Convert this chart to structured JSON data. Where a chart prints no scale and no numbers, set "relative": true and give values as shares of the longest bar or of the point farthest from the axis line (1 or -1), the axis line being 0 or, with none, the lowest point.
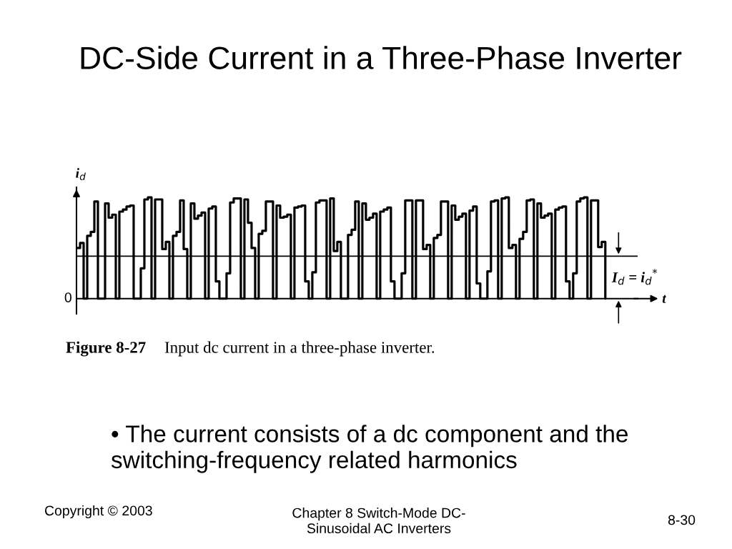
{
  "chart_data": {
    "type": "step",
    "title": "DC-Side Current in a Three-Phase Inverter",
    "xlabel": "t",
    "ylabel": "i$_{d}$",
    "relative": true,
    "line_style": "solid",
    "categories": [
      null,
      null,
      null,
      null,
      null,
      null,
      null,
      null,
      null,
      null,
      null,
      null,
      null,
      null,
      null,
      null,
      null,
      null,
      null,
      null,
      null,
      null,
      null,
      null,
      null,
      null,
      null,
      null,
      null,
      null,
      null,
      null,
      null,
      null,
      null,
      null,
      null,
      null,
      null,
      null,
      null,
      null,
      null,
      null,
      null,
      null,
      null,
      null,
      null,
      null,
      null,
      null,
      null,
      null,
      null,
      null,
      null,
      null,
      null,
      null,
      null,
      null,
      null,
      null,
      null,
      null,
      null,
      null,
      null,
      null,
      null,
      null,
      null,
      null,
      null,
      null,
      null,
      null,
      null,
      null,
      null,
      null,
      null,
      null,
      null,
      null,
      null,
      null,
      null,
      null,
      null,
      null,
      null,
      null,
      null,
      null,
      null,
      null,
      null,
      null,
      null,
      null,
      null,
      null,
      null,
      null,
      null,
      null,
      null,
      null,
      null,
      null,
      null,
      null,
      null,
      null,
      null,
      null,
      null,
      null,
      null,
      null,
      null,
      null,
      null,
      null,
      null,
      null,
      null,
      null,
      null,
      null,
      null,
      null,
      null,
      null,
      null,
      null,
      null,
      null,
      null,
      null,
      null,
      null,
      null,
      null,
      null,
      null,
      null
    ],
    "series": [
      {
        "color": "#000000",
        "values": [
          0.5,
          0.55,
          0,
          0.62,
          0.66,
          0.96,
          0,
          0,
          0.94,
          0.8,
          0.83,
          0,
          0.86,
          0.88,
          0.91,
          0.92,
          0,
          0,
          0.3,
          0.98,
          1.0,
          0,
          0.98,
          0.98,
          0.49,
          0.56,
          0,
          0.62,
          0.66,
          0.97,
          0.49,
          0,
          0.94,
          0.79,
          0.82,
          0.85,
          0,
          0.89,
          0.91,
          0.17,
          0,
          0,
          0.25,
          0.95,
          0.99,
          0.99,
          0,
          0.98,
          0.75,
          0.5,
          0,
          0.64,
          0.67,
          0.96,
          0.96,
          0,
          0.92,
          0.8,
          0.81,
          0.83,
          0,
          0.9,
          0.91,
          0.92,
          0.17,
          0,
          0.26,
          0.95,
          0.97,
          0.97,
          0,
          0.99,
          0.47,
          0.56,
          0,
          0,
          0.63,
          0.68,
          0.96,
          0,
          0.94,
          0.78,
          0.8,
          0.84,
          0,
          0.86,
          0.88,
          0.9,
          0.17,
          0,
          0,
          0.25,
          0.97,
          0.97,
          0,
          0.97,
          0.97,
          0.49,
          0.53,
          0,
          0.6,
          0.63,
          0.96,
          0.96,
          0,
          0.92,
          0.78,
          0.81,
          0.84,
          0,
          0.87,
          0.91,
          0.15,
          0,
          0,
          0.27,
          0.96,
          0.97,
          0,
          0.99,
          1.0,
          0.5,
          0.53,
          0,
          0.59,
          0.66,
          0.97,
          0.98,
          0,
          0.94,
          0.8,
          0.82,
          0.84,
          0,
          0.88,
          0.9,
          0.91,
          0.17,
          0,
          0.25,
          0.96,
          0.99,
          1.0,
          0,
          0.97,
          0.97,
          0.51,
          0.56,
          0
        ]
      }
    ],
    "ref_lines": [
      {
        "axis": "y",
        "value": 0.42,
        "label": "I$_{d}$ = i$_{d}$$^{*}$",
        "color": "#000000"
      }
    ],
    "annotations": [
      "0",
      "Figure 8-27",
      "Input dc current in a three-phase inverter.",
      "• The current consists of a dc component and the\nswitching-frequency related harmonics",
      "Copyright © 2003",
      "Chapter 8 Switch-Mode DC-\nSinusoidal AC Inverters",
      "8-30"
    ]
  }
}
